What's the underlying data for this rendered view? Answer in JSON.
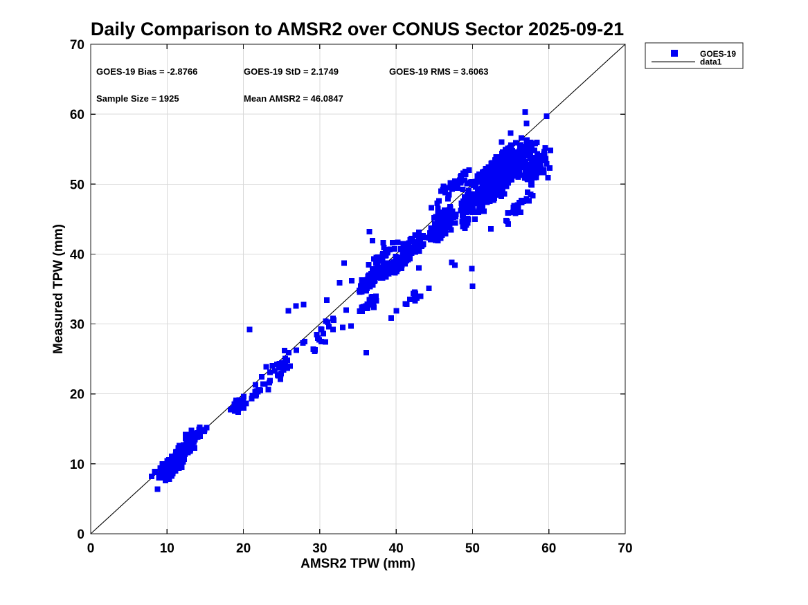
{
  "title": "Daily Comparison to AMSR2 over CONUS Sector 2025-09-21",
  "stats_text": {
    "bias": "GOES-19 Bias = -2.8766",
    "std": "GOES-19 StD = 2.1749",
    "rms": "GOES-19 RMS = 3.6063",
    "sample": "Sample Size = 1925",
    "mean": "Mean AMSR2 = 46.0847"
  },
  "axes": {
    "x": {
      "label": "AMSR2 TPW (mm)",
      "min": 0,
      "max": 70,
      "ticks": [
        0,
        10,
        20,
        30,
        40,
        50,
        60,
        70
      ]
    },
    "y": {
      "label": "Measured TPW (mm)",
      "min": 0,
      "max": 70,
      "ticks": [
        0,
        10,
        20,
        30,
        40,
        50,
        60,
        70
      ]
    },
    "grid": true
  },
  "legend": {
    "items": [
      {
        "label": "GOES-19",
        "type": "marker"
      },
      {
        "label": "data1",
        "type": "line"
      }
    ],
    "position": "top-right-outside"
  },
  "colors": {
    "marker": "#0000f5",
    "line": "#000000",
    "grid": "#d9d9d9",
    "axis": "#1a1a1a",
    "background": "#ffffff"
  },
  "chart_data": {
    "type": "scatter",
    "title": "Daily Comparison to AMSR2 over CONUS Sector 2025-09-21",
    "xlabel": "AMSR2 TPW (mm)",
    "ylabel": "Measured TPW (mm)",
    "xlim": [
      0,
      70
    ],
    "ylim": [
      0,
      70
    ],
    "grid": true,
    "stats": {
      "bias": -2.8766,
      "std": 2.1749,
      "rms": 3.6063,
      "sample_size": 1925,
      "mean_amsr2": 46.0847
    },
    "series": [
      {
        "name": "GOES-19",
        "marker": "square",
        "color": "#0000f5"
      }
    ],
    "identity_line": {
      "name": "data1",
      "from": [
        0,
        0
      ],
      "to": [
        70,
        70
      ]
    },
    "seed": 7,
    "outliers": [
      [
        8.0,
        8.2
      ],
      [
        9.8,
        7.6
      ],
      [
        10.3,
        7.8
      ],
      [
        12.4,
        14.2
      ],
      [
        13.2,
        14.8
      ],
      [
        14.9,
        14.9
      ],
      [
        19.0,
        18.8
      ],
      [
        20.8,
        29.2
      ],
      [
        21.6,
        21.3
      ],
      [
        22.6,
        21.4
      ],
      [
        23.4,
        21.6
      ],
      [
        23.0,
        23.9
      ],
      [
        24.1,
        23.3
      ],
      [
        25.4,
        26.2
      ],
      [
        25.9,
        31.9
      ],
      [
        26.1,
        24.0
      ],
      [
        26.9,
        32.6
      ],
      [
        27.9,
        32.8
      ],
      [
        28.0,
        27.5
      ],
      [
        29.4,
        26.3
      ],
      [
        30.2,
        27.5
      ],
      [
        30.9,
        33.4
      ],
      [
        31.2,
        29.6
      ],
      [
        32.6,
        35.9
      ],
      [
        33.0,
        29.5
      ],
      [
        33.2,
        38.7
      ],
      [
        34.1,
        29.7
      ],
      [
        34.2,
        36.2
      ],
      [
        35.8,
        32.3
      ],
      [
        36.1,
        25.9
      ],
      [
        36.5,
        43.2
      ],
      [
        36.9,
        41.9
      ],
      [
        37.1,
        32.4
      ],
      [
        38.3,
        41.6
      ],
      [
        41.8,
        33.5
      ],
      [
        42.7,
        33.7
      ],
      [
        43.0,
        38.0
      ],
      [
        44.3,
        35.1
      ],
      [
        44.6,
        46.6
      ],
      [
        45.6,
        47.6
      ],
      [
        46.2,
        49.7
      ],
      [
        47.1,
        50.2
      ],
      [
        47.3,
        38.8
      ],
      [
        47.7,
        38.4
      ],
      [
        48.4,
        51.0
      ],
      [
        49.9,
        37.9
      ],
      [
        50.0,
        35.4
      ],
      [
        52.4,
        43.6
      ],
      [
        53.8,
        56.0
      ],
      [
        55.0,
        57.3
      ],
      [
        56.9,
        60.3
      ],
      [
        57.1,
        58.7
      ],
      [
        59.7,
        59.7
      ],
      [
        59.9,
        50.9
      ],
      [
        60.1,
        52.3
      ],
      [
        60.2,
        54.8
      ]
    ],
    "clusters": [
      {
        "n": 160,
        "x": [
          8.3,
          13.3
        ],
        "bias": [
          -2.7,
          0.9
        ]
      },
      {
        "n": 65,
        "x": [
          10.6,
          15.3
        ],
        "bias": [
          -1.4,
          1.4
        ]
      },
      {
        "n": 22,
        "x": [
          17.9,
          20.7
        ],
        "bias": [
          -2.4,
          0.3
        ]
      },
      {
        "n": 12,
        "x": [
          20.3,
          23.7
        ],
        "bias": [
          -2.7,
          -0.7
        ]
      },
      {
        "n": 26,
        "x": [
          21.9,
          28.6
        ],
        "bias": [
          -2.9,
          0.7
        ]
      },
      {
        "n": 15,
        "x": [
          28.4,
          34.0
        ],
        "bias": [
          -3.8,
          0.4
        ]
      },
      {
        "n": 120,
        "x": [
          35.0,
          39.2
        ],
        "bias": [
          -1.6,
          1.2
        ]
      },
      {
        "n": 130,
        "x": [
          38.0,
          44.0
        ],
        "bias": [
          -3.2,
          0.7
        ]
      },
      {
        "n": 26,
        "x": [
          36.3,
          40.6
        ],
        "bias": [
          0.8,
          2.6
        ]
      },
      {
        "n": 22,
        "x": [
          35.2,
          37.8
        ],
        "bias": [
          -4.6,
          -2.6
        ]
      },
      {
        "n": 10,
        "x": [
          39.0,
          44.6
        ],
        "bias": [
          -9.3,
          -7.3
        ]
      },
      {
        "n": 120,
        "x": [
          44.0,
          48.2
        ],
        "bias": [
          -4.2,
          0.8
        ]
      },
      {
        "n": 30,
        "x": [
          45.0,
          50.0
        ],
        "bias": [
          1.0,
          3.3
        ]
      },
      {
        "n": 420,
        "x": [
          48.0,
          57.5
        ],
        "bias": [
          -5.8,
          0.5
        ]
      },
      {
        "n": 120,
        "x": [
          51.0,
          59.0
        ],
        "bias": [
          -4.5,
          -0.5
        ]
      },
      {
        "n": 70,
        "x": [
          56.0,
          60.3
        ],
        "bias": [
          -8.5,
          -3.0
        ]
      },
      {
        "n": 25,
        "x": [
          53.0,
          58.5
        ],
        "bias": [
          -10.5,
          -8.0
        ]
      },
      {
        "n": 40,
        "x": [
          48.0,
          57.0
        ],
        "bias": [
          0.0,
          0.9
        ]
      }
    ]
  }
}
